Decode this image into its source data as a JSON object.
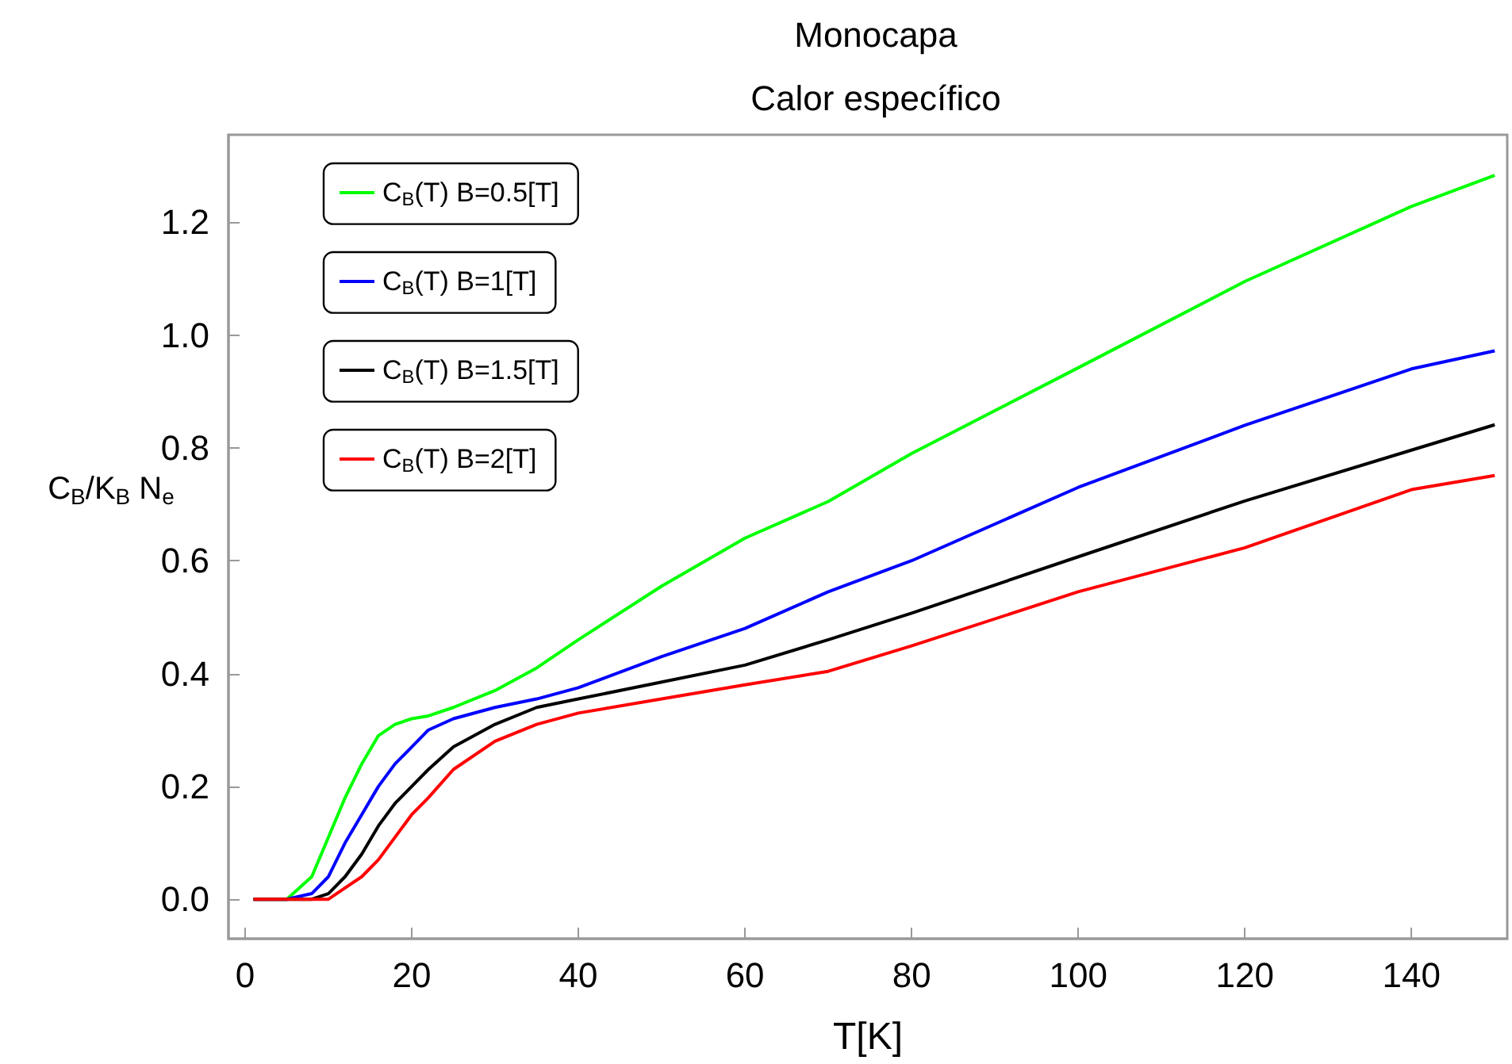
{
  "chart_data": {
    "type": "line",
    "title": "Monocapa",
    "subtitle": "Calor específico",
    "xlabel": "T[K]",
    "ylabel": "C$_{B}$/K$_{B}$ N$_{e}$",
    "x": [
      1,
      5,
      8,
      10,
      12,
      14,
      16,
      18,
      20,
      22,
      25,
      30,
      35,
      40,
      50,
      60,
      70,
      80,
      100,
      120,
      140,
      150
    ],
    "series": [
      {
        "name": "C$_{B}$(T) B=0.5[T]",
        "color": "#00ff00",
        "values": [
          0,
          0,
          0.04,
          0.11,
          0.18,
          0.24,
          0.29,
          0.31,
          0.32,
          0.325,
          0.34,
          0.37,
          0.41,
          0.46,
          0.555,
          0.64,
          0.705,
          0.79,
          0.942,
          1.095,
          1.228,
          1.283
        ]
      },
      {
        "name": "C$_{B}$(T) B=1[T]",
        "color": "#0000ff",
        "values": [
          0,
          0,
          0.01,
          0.04,
          0.1,
          0.15,
          0.2,
          0.24,
          0.27,
          0.3,
          0.32,
          0.34,
          0.355,
          0.375,
          0.43,
          0.48,
          0.545,
          0.6,
          0.73,
          0.84,
          0.94,
          0.972
        ]
      },
      {
        "name": "C$_{B}$(T) B=1.5[T]",
        "color": "#000000",
        "values": [
          0,
          0,
          0,
          0.01,
          0.04,
          0.08,
          0.13,
          0.17,
          0.2,
          0.23,
          0.27,
          0.31,
          0.34,
          0.355,
          0.385,
          0.415,
          0.46,
          0.507,
          0.607,
          0.706,
          0.796,
          0.841
        ]
      },
      {
        "name": "C$_{B}$(T) B=2[T]",
        "color": "#ff0000",
        "values": [
          0,
          0,
          0,
          0,
          0.02,
          0.04,
          0.07,
          0.11,
          0.15,
          0.18,
          0.23,
          0.28,
          0.31,
          0.33,
          0.355,
          0.38,
          0.404,
          0.449,
          0.545,
          0.623,
          0.726,
          0.751
        ]
      }
    ],
    "xlim": [
      -2,
      151.5
    ],
    "xticks": [
      0,
      20,
      40,
      60,
      80,
      100,
      120,
      140
    ],
    "ylim": [
      -0.07,
      1.355
    ],
    "yticks": [
      {
        "value": 0,
        "label": "0.0"
      },
      0.2,
      0.4,
      0.6,
      0.8,
      {
        "value": 1,
        "label": "1.0"
      },
      1.2
    ],
    "legend": "top left",
    "grid": false
  }
}
